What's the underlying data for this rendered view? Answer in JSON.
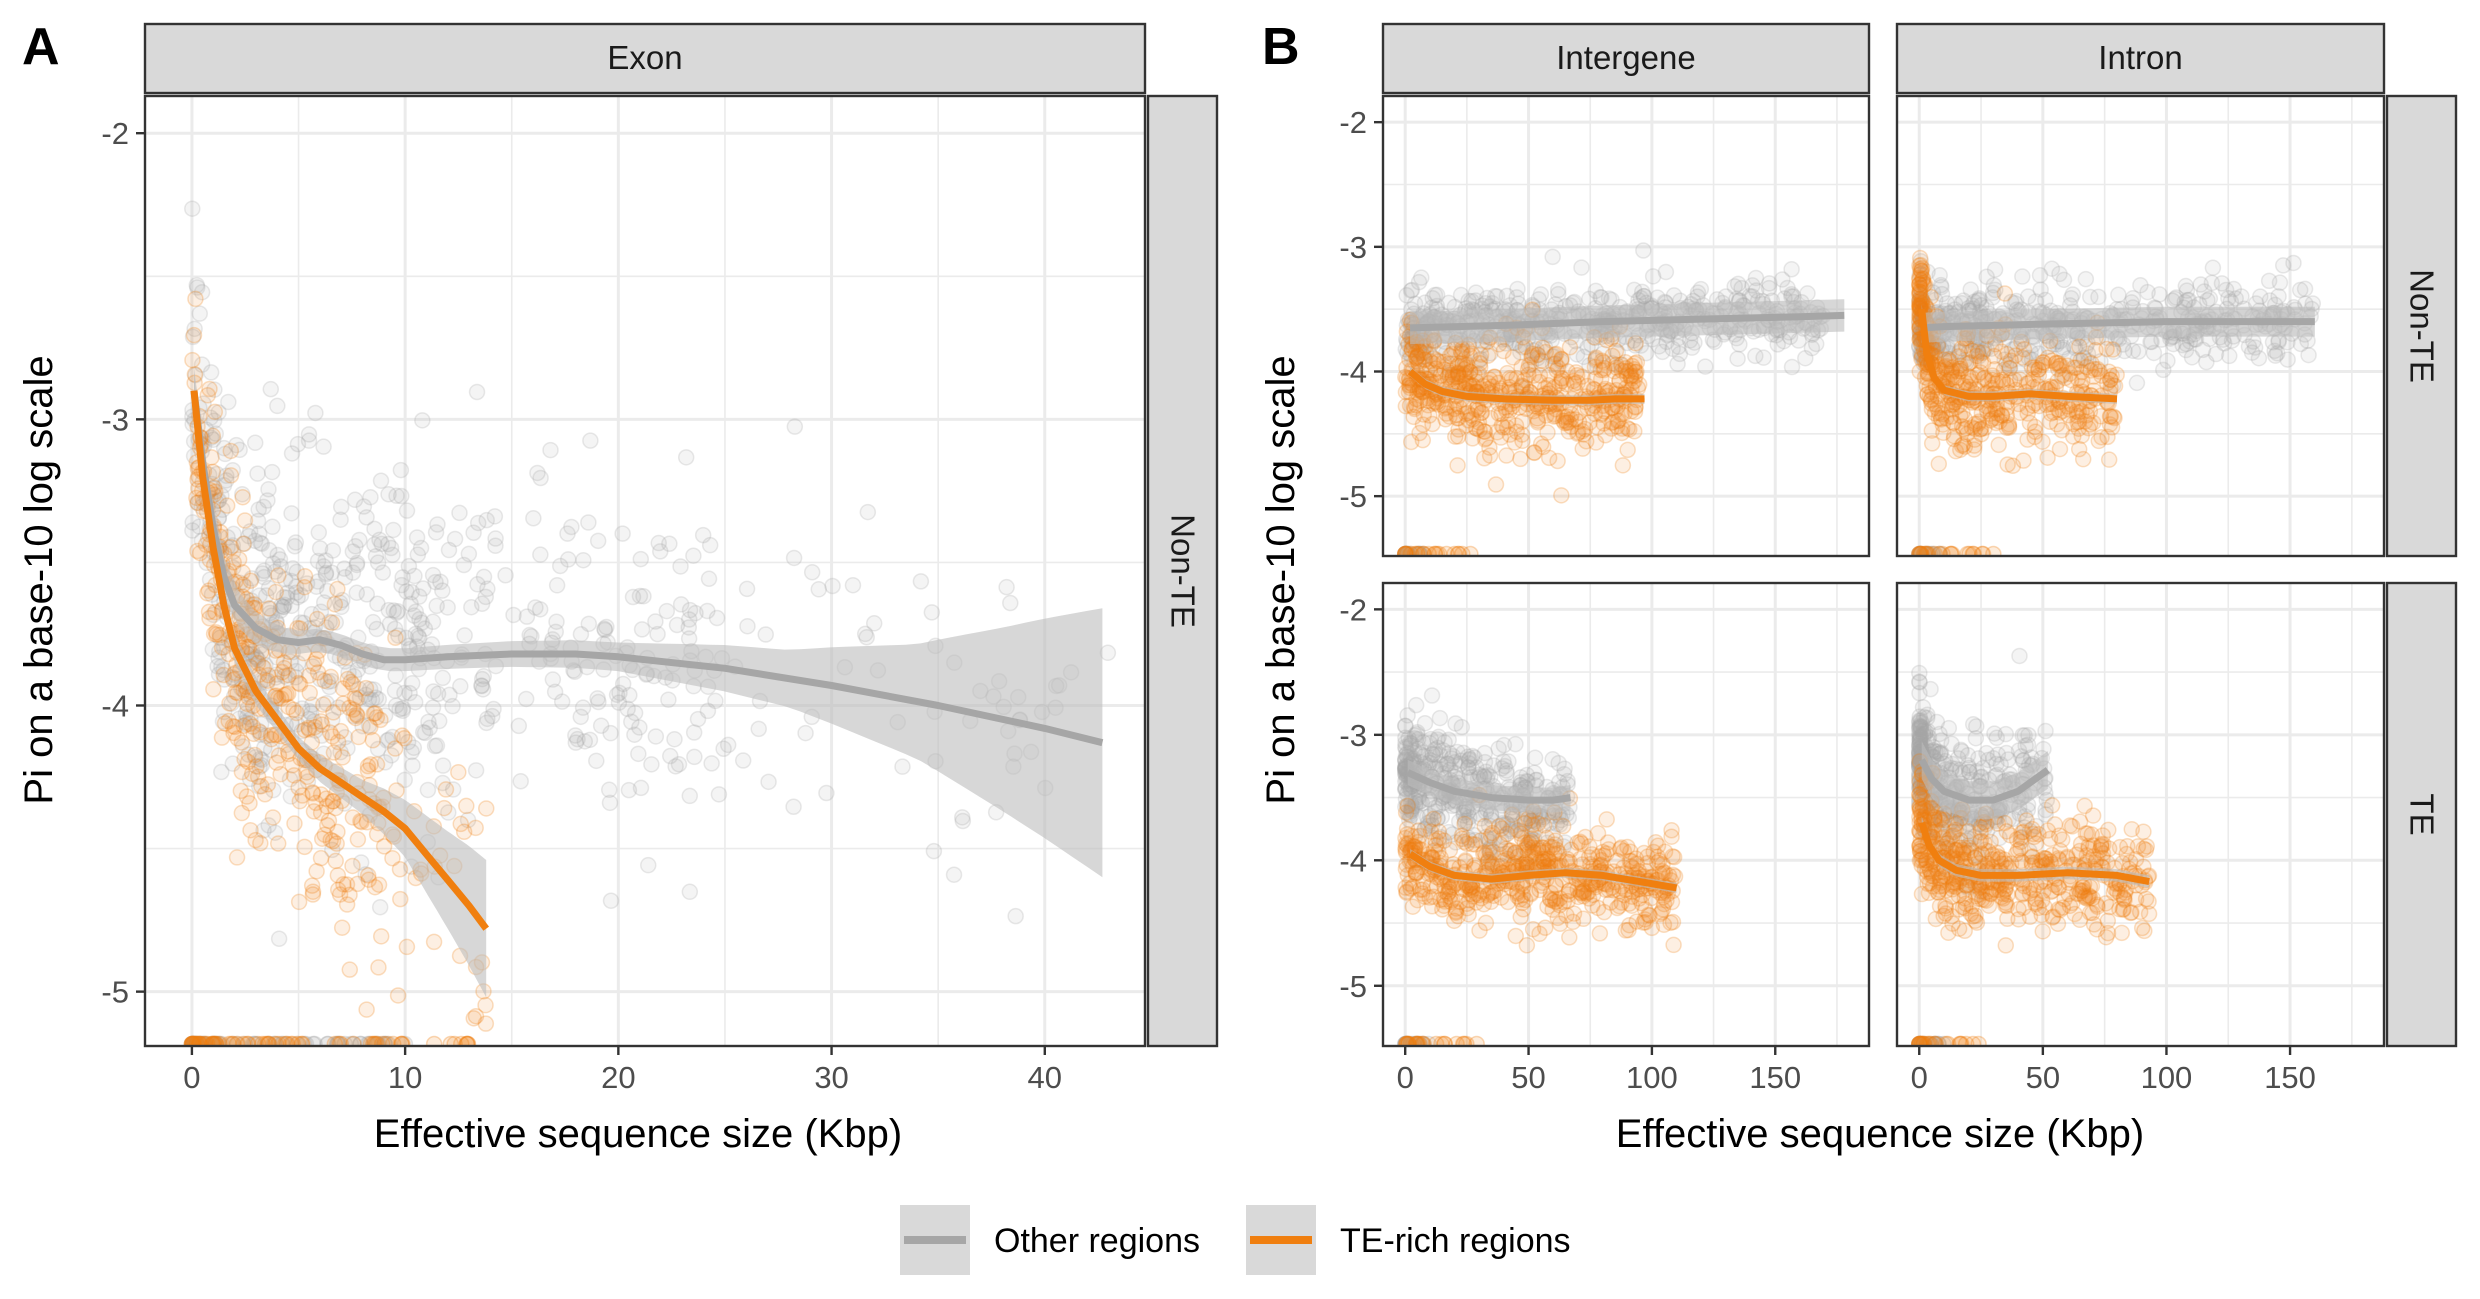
{
  "figure": {
    "panel_tags": [
      "A",
      "B"
    ],
    "legend": {
      "items": [
        {
          "label": "Other regions",
          "color": "#a6a6a6"
        },
        {
          "label": "TE-rich regions",
          "color": "#f07f0f"
        }
      ]
    },
    "colors": {
      "other": "#a6a6a6",
      "te_rich": "#f07f0f",
      "ribbon": "#bdbdbd",
      "strip_bg": "#d9d9d9",
      "grid": "#ebebeb"
    }
  },
  "chart_data": [
    {
      "type": "scatter",
      "panel": "A",
      "column_strip": "Exon",
      "row_strip": "Non-TE",
      "xlabel": "Effective sequence size (Kbp)",
      "ylabel": "Pi on a base-10 log scale",
      "xlim": [
        -2.2,
        44.7
      ],
      "ylim": [
        -5.19,
        -1.87
      ],
      "xticks": [
        0,
        10,
        20,
        30,
        40
      ],
      "yticks": [
        -2,
        -3,
        -4,
        -5
      ],
      "series": [
        {
          "name": "Other regions",
          "smooth": [
            [
              0.1,
              -2.9
            ],
            [
              0.5,
              -3.15
            ],
            [
              1,
              -3.38
            ],
            [
              1.5,
              -3.55
            ],
            [
              2,
              -3.65
            ],
            [
              3,
              -3.73
            ],
            [
              4,
              -3.77
            ],
            [
              5,
              -3.78
            ],
            [
              6,
              -3.77
            ],
            [
              7,
              -3.79
            ],
            [
              8,
              -3.82
            ],
            [
              9,
              -3.84
            ],
            [
              10,
              -3.84
            ],
            [
              12,
              -3.83
            ],
            [
              15,
              -3.82
            ],
            [
              18,
              -3.82
            ],
            [
              20,
              -3.83
            ],
            [
              25,
              -3.87
            ],
            [
              30,
              -3.93
            ],
            [
              35,
              -4.0
            ],
            [
              40,
              -4.08
            ],
            [
              42.7,
              -4.13
            ]
          ],
          "ribbon_halfwidth": [
            [
              0,
              0.08
            ],
            [
              5,
              0.04
            ],
            [
              10,
              0.04
            ],
            [
              20,
              0.05
            ],
            [
              28,
              0.1
            ],
            [
              34,
              0.2
            ],
            [
              38,
              0.32
            ],
            [
              42.7,
              0.47
            ]
          ],
          "cloud": [
            {
              "x": [
                0,
                4
              ],
              "y_spread": 0.3,
              "n": 220
            },
            {
              "x": [
                4,
                12
              ],
              "y_spread": 0.3,
              "n": 260
            },
            {
              "x": [
                12,
                25
              ],
              "y_spread": 0.3,
              "n": 180
            },
            {
              "x": [
                25,
                43
              ],
              "y_spread": 0.28,
              "n": 60
            }
          ]
        },
        {
          "name": "TE-rich regions",
          "smooth": [
            [
              0.1,
              -2.9
            ],
            [
              0.5,
              -3.2
            ],
            [
              1,
              -3.45
            ],
            [
              1.5,
              -3.65
            ],
            [
              2,
              -3.8
            ],
            [
              3,
              -3.95
            ],
            [
              4,
              -4.05
            ],
            [
              5,
              -4.15
            ],
            [
              6,
              -4.22
            ],
            [
              7,
              -4.27
            ],
            [
              8,
              -4.32
            ],
            [
              9,
              -4.37
            ],
            [
              10,
              -4.43
            ],
            [
              11,
              -4.52
            ],
            [
              12,
              -4.61
            ],
            [
              13,
              -4.7
            ],
            [
              13.8,
              -4.78
            ]
          ],
          "ribbon_halfwidth": [
            [
              0,
              0.06
            ],
            [
              5,
              0.04
            ],
            [
              8,
              0.06
            ],
            [
              10,
              0.1
            ],
            [
              12,
              0.17
            ],
            [
              13.8,
              0.24
            ]
          ],
          "cloud": [
            {
              "x": [
                0,
                3
              ],
              "y_spread": 0.25,
              "n": 160
            },
            {
              "x": [
                3,
                9
              ],
              "y_spread": 0.28,
              "n": 200
            },
            {
              "x": [
                9,
                14
              ],
              "y_spread": 0.3,
              "n": 40
            }
          ]
        }
      ]
    },
    {
      "type": "scatter",
      "panel": "B",
      "column_strip": "Intergene",
      "row_strip": "Non-TE",
      "xlabel": "Effective sequence size (Kbp)",
      "ylabel": "Pi on a base-10 log scale",
      "xlim": [
        -9,
        188
      ],
      "ylim": [
        -5.48,
        -1.79
      ],
      "xticks": [
        0,
        50,
        100,
        150
      ],
      "yticks": [
        -2,
        -3,
        -4,
        -5
      ],
      "series": [
        {
          "name": "Other regions",
          "smooth": [
            [
              2,
              -3.65
            ],
            [
              40,
              -3.63
            ],
            [
              80,
              -3.6
            ],
            [
              120,
              -3.58
            ],
            [
              160,
              -3.56
            ],
            [
              178,
              -3.55
            ]
          ]
        },
        {
          "name": "TE-rich regions",
          "smooth": [
            [
              2,
              -4.0
            ],
            [
              8,
              -4.1
            ],
            [
              15,
              -4.16
            ],
            [
              25,
              -4.2
            ],
            [
              40,
              -4.22
            ],
            [
              60,
              -4.23
            ],
            [
              75,
              -4.23
            ],
            [
              85,
              -4.22
            ],
            [
              97,
              -4.22
            ]
          ]
        }
      ]
    },
    {
      "type": "scatter",
      "panel": "B",
      "column_strip": "Intron",
      "row_strip": "Non-TE",
      "xlabel": "Effective sequence size (Kbp)",
      "ylabel": "Pi on a base-10 log scale",
      "xlim": [
        -9,
        188
      ],
      "ylim": [
        -5.48,
        -1.79
      ],
      "xticks": [
        0,
        50,
        100,
        150
      ],
      "yticks": [
        -2,
        -3,
        -4,
        -5
      ],
      "series": [
        {
          "name": "Other regions",
          "smooth": [
            [
              1,
              -3.65
            ],
            [
              10,
              -3.64
            ],
            [
              50,
              -3.62
            ],
            [
              100,
              -3.6
            ],
            [
              160,
              -3.6
            ]
          ]
        },
        {
          "name": "TE-rich regions",
          "smooth": [
            [
              1,
              -3.5
            ],
            [
              3,
              -3.85
            ],
            [
              6,
              -4.05
            ],
            [
              10,
              -4.15
            ],
            [
              20,
              -4.2
            ],
            [
              30,
              -4.2
            ],
            [
              45,
              -4.18
            ],
            [
              60,
              -4.2
            ],
            [
              80,
              -4.22
            ]
          ]
        }
      ]
    },
    {
      "type": "scatter",
      "panel": "B",
      "column_strip": "Intergene",
      "row_strip": "TE",
      "xlabel": "Effective sequence size (Kbp)",
      "ylabel": "Pi on a base-10 log scale",
      "xlim": [
        -9,
        188
      ],
      "ylim": [
        -5.48,
        -1.79
      ],
      "xticks": [
        0,
        50,
        100,
        150
      ],
      "yticks": [
        -2,
        -3,
        -4,
        -5
      ],
      "series": [
        {
          "name": "Other regions",
          "smooth": [
            [
              1,
              -3.3
            ],
            [
              10,
              -3.38
            ],
            [
              20,
              -3.45
            ],
            [
              35,
              -3.5
            ],
            [
              50,
              -3.52
            ],
            [
              60,
              -3.52
            ],
            [
              67,
              -3.5
            ]
          ]
        },
        {
          "name": "TE-rich regions",
          "smooth": [
            [
              2,
              -3.95
            ],
            [
              10,
              -4.05
            ],
            [
              20,
              -4.12
            ],
            [
              35,
              -4.15
            ],
            [
              50,
              -4.12
            ],
            [
              65,
              -4.1
            ],
            [
              80,
              -4.12
            ],
            [
              95,
              -4.17
            ],
            [
              110,
              -4.22
            ]
          ]
        }
      ]
    },
    {
      "type": "scatter",
      "panel": "B",
      "column_strip": "Intron",
      "row_strip": "TE",
      "xlabel": "Effective sequence size (Kbp)",
      "ylabel": "Pi on a base-10 log scale",
      "xlim": [
        -9,
        188
      ],
      "ylim": [
        -5.48,
        -1.79
      ],
      "xticks": [
        0,
        50,
        100,
        150
      ],
      "yticks": [
        -2,
        -3,
        -4,
        -5
      ],
      "series": [
        {
          "name": "Other regions",
          "smooth": [
            [
              1,
              -3.2
            ],
            [
              5,
              -3.35
            ],
            [
              10,
              -3.45
            ],
            [
              20,
              -3.52
            ],
            [
              30,
              -3.52
            ],
            [
              40,
              -3.45
            ],
            [
              52,
              -3.28
            ]
          ]
        },
        {
          "name": "TE-rich regions",
          "smooth": [
            [
              1,
              -3.7
            ],
            [
              4,
              -3.88
            ],
            [
              8,
              -4.0
            ],
            [
              15,
              -4.08
            ],
            [
              25,
              -4.12
            ],
            [
              40,
              -4.12
            ],
            [
              60,
              -4.1
            ],
            [
              80,
              -4.12
            ],
            [
              93,
              -4.17
            ]
          ]
        }
      ]
    }
  ]
}
